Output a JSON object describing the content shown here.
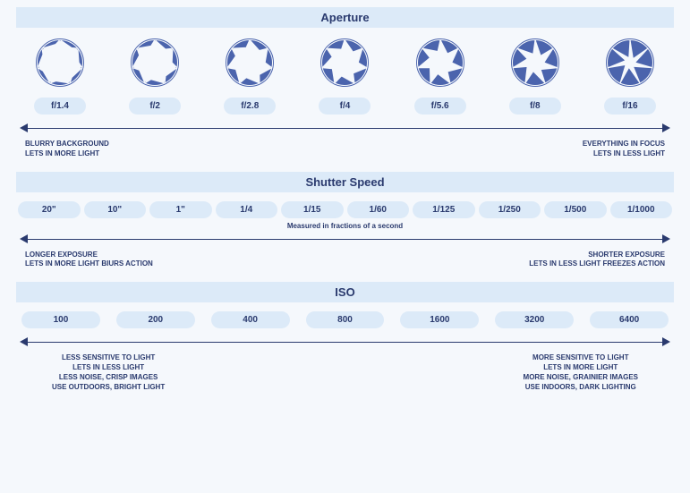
{
  "colors": {
    "background": "#f5f8fc",
    "band": "#dceaf8",
    "primary": "#4b64ad",
    "text": "#2a3a6e",
    "pill": "#dceaf8"
  },
  "typography": {
    "title_fontsize": 13,
    "pill_fontsize": 10,
    "endpoint_fontsize": 8,
    "font_family": "Arial"
  },
  "aperture": {
    "title": "Aperture",
    "items": [
      {
        "label": "f/1.4",
        "blade_ratio": 0.18
      },
      {
        "label": "f/2",
        "blade_ratio": 0.26
      },
      {
        "label": "f/2.8",
        "blade_ratio": 0.34
      },
      {
        "label": "f/4",
        "blade_ratio": 0.42
      },
      {
        "label": "f/5.6",
        "blade_ratio": 0.52
      },
      {
        "label": "f/8",
        "blade_ratio": 0.64
      },
      {
        "label": "f/16",
        "blade_ratio": 0.82
      }
    ],
    "icon_color": "#4b64ad",
    "blade_count": 7,
    "left_lines": [
      "BLURRY BACKGROUND",
      "LETS IN MORE LIGHT"
    ],
    "right_lines": [
      "EVERYTHING IN FOCUS",
      "LETS IN LESS LIGHT"
    ]
  },
  "shutter": {
    "title": "Shutter Speed",
    "values": [
      "20\"",
      "10\"",
      "1\"",
      "1/4",
      "1/15",
      "1/60",
      "1/125",
      "1/250",
      "1/500",
      "1/1000"
    ],
    "arrow_caption": "Measured in fractions of a second",
    "left_lines": [
      "LONGER EXPOSURE",
      "LETS IN MORE LIGHT BIURS ACTION"
    ],
    "right_lines": [
      "SHORTER EXPOSURE",
      "LETS IN LESS LIGHT FREEZES ACTION"
    ]
  },
  "iso": {
    "title": "ISO",
    "values": [
      "100",
      "200",
      "400",
      "800",
      "1600",
      "3200",
      "6400"
    ],
    "left_lines": [
      "LESS SENSITIVE TO LIGHT",
      "LETS IN LESS LIGHT",
      "LESS NOISE, CRISP IMAGES",
      "USE OUTDOORS, BRIGHT LIGHT"
    ],
    "right_lines": [
      "MORE SENSITIVE TO LIGHT",
      "LETS IN MORE LIGHT",
      "MORE NOISE, GRAINIER IMAGES",
      "USE INDOORS, DARK LIGHTING"
    ]
  }
}
